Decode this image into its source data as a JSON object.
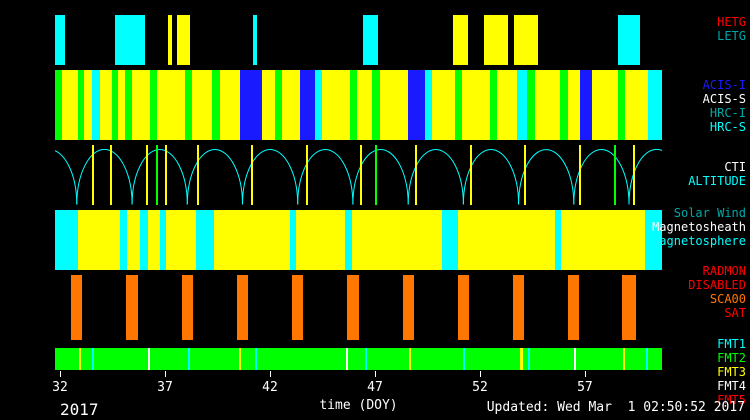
{
  "page": {
    "year_label": "2017",
    "xaxis_title": "time (DOY)",
    "updated_text": "Updated: Wed Mar  1 02:50:52 2017"
  },
  "chart_data": {
    "type": "timeline",
    "xlabel": "time (DOY)",
    "year": "2017",
    "updated": "Updated: Wed Mar  1 02:50:52 2017",
    "x_domain": [
      31.76,
      60.67
    ],
    "x_ticks": [
      32,
      37,
      42,
      47,
      52,
      57
    ],
    "colors": {
      "black": "#000000",
      "white": "#ffffff",
      "red": "#ff0000",
      "yellow": "#ffff00",
      "cyan": "#00ffff",
      "green": "#00ff00",
      "blue": "#1a1aff",
      "orange": "#ff7700",
      "teal": "#00a8a8"
    },
    "bands": [
      {
        "id": "gratings",
        "background": "black",
        "labels": [
          {
            "text": "HETG",
            "color": "red"
          },
          {
            "text": "LETG",
            "color": "teal"
          }
        ],
        "segments": [
          [
            31.76,
            32.24,
            "cyan"
          ],
          [
            34.62,
            36.05,
            "cyan"
          ],
          [
            37.14,
            37.33,
            "yellow"
          ],
          [
            37.57,
            38.19,
            "yellow"
          ],
          [
            41.19,
            41.38,
            "cyan"
          ],
          [
            46.43,
            47.14,
            "cyan"
          ],
          [
            50.71,
            51.43,
            "yellow"
          ],
          [
            52.19,
            53.33,
            "yellow"
          ],
          [
            53.62,
            54.76,
            "yellow"
          ],
          [
            58.57,
            59.62,
            "cyan"
          ]
        ]
      },
      {
        "id": "instruments",
        "background": "yellow",
        "labels": [
          {
            "text": "ACIS-I",
            "color": "blue"
          },
          {
            "text": "ACIS-S",
            "color": "white"
          },
          {
            "text": "HRC-I",
            "color": "teal"
          },
          {
            "text": "HRC-S",
            "color": "cyan"
          }
        ],
        "segments": [
          [
            31.76,
            32.1,
            "green"
          ],
          [
            32.1,
            32.86,
            "yellow"
          ],
          [
            32.86,
            33.14,
            "green"
          ],
          [
            33.14,
            33.52,
            "yellow"
          ],
          [
            33.52,
            33.9,
            "cyan"
          ],
          [
            33.9,
            34.48,
            "yellow"
          ],
          [
            34.48,
            34.76,
            "green"
          ],
          [
            34.76,
            35.1,
            "yellow"
          ],
          [
            35.1,
            35.43,
            "green"
          ],
          [
            35.43,
            36.29,
            "yellow"
          ],
          [
            36.29,
            36.62,
            "green"
          ],
          [
            36.62,
            37.95,
            "yellow"
          ],
          [
            37.95,
            38.29,
            "green"
          ],
          [
            38.29,
            39.24,
            "yellow"
          ],
          [
            39.24,
            39.62,
            "green"
          ],
          [
            39.62,
            40.57,
            "yellow"
          ],
          [
            40.57,
            41.62,
            "blue"
          ],
          [
            41.62,
            42.24,
            "yellow"
          ],
          [
            42.24,
            42.57,
            "green"
          ],
          [
            42.57,
            43.43,
            "yellow"
          ],
          [
            43.43,
            44.14,
            "blue"
          ],
          [
            44.14,
            44.48,
            "cyan"
          ],
          [
            44.48,
            45.81,
            "yellow"
          ],
          [
            45.81,
            46.14,
            "green"
          ],
          [
            46.14,
            46.86,
            "yellow"
          ],
          [
            46.86,
            47.24,
            "green"
          ],
          [
            47.24,
            48.57,
            "yellow"
          ],
          [
            48.57,
            49.38,
            "blue"
          ],
          [
            49.38,
            49.71,
            "cyan"
          ],
          [
            49.71,
            50.81,
            "yellow"
          ],
          [
            50.81,
            51.14,
            "green"
          ],
          [
            51.14,
            52.48,
            "yellow"
          ],
          [
            52.48,
            52.81,
            "green"
          ],
          [
            52.81,
            53.76,
            "yellow"
          ],
          [
            53.76,
            54.24,
            "cyan"
          ],
          [
            54.24,
            54.62,
            "green"
          ],
          [
            54.62,
            55.81,
            "yellow"
          ],
          [
            55.81,
            56.19,
            "green"
          ],
          [
            56.19,
            56.76,
            "yellow"
          ],
          [
            56.76,
            57.33,
            "blue"
          ],
          [
            57.33,
            58.57,
            "yellow"
          ],
          [
            58.57,
            58.9,
            "green"
          ],
          [
            58.9,
            60.0,
            "yellow"
          ],
          [
            60.0,
            60.67,
            "cyan"
          ]
        ]
      },
      {
        "id": "altitude",
        "background": "black",
        "labels": [
          {
            "text": "CTI",
            "color": "white"
          },
          {
            "text": "ALTITUDE",
            "color": "cyan"
          }
        ],
        "arc_color": "cyan",
        "arcs": [
          [
            30.17,
            32.8
          ],
          [
            32.8,
            35.43
          ],
          [
            35.43,
            38.06
          ],
          [
            38.06,
            40.69
          ],
          [
            40.69,
            43.32
          ],
          [
            43.32,
            45.95
          ],
          [
            45.95,
            48.58
          ],
          [
            48.58,
            51.21
          ],
          [
            51.21,
            53.84
          ],
          [
            53.84,
            56.47
          ],
          [
            56.47,
            59.1
          ],
          [
            59.1,
            61.73
          ]
        ],
        "vlines": [
          [
            33.5,
            "yellow"
          ],
          [
            34.4,
            "yellow"
          ],
          [
            36.1,
            "yellow"
          ],
          [
            36.55,
            "green"
          ],
          [
            37.0,
            "yellow"
          ],
          [
            38.5,
            "yellow"
          ],
          [
            41.1,
            "yellow"
          ],
          [
            43.7,
            "yellow"
          ],
          [
            46.3,
            "yellow"
          ],
          [
            47.0,
            "green"
          ],
          [
            48.9,
            "yellow"
          ],
          [
            51.5,
            "yellow"
          ],
          [
            54.1,
            "yellow"
          ],
          [
            56.7,
            "yellow"
          ],
          [
            58.4,
            "green"
          ],
          [
            59.3,
            "yellow"
          ]
        ]
      },
      {
        "id": "regions",
        "background": "yellow",
        "labels": [
          {
            "text": "Solar Wind",
            "color": "teal"
          },
          {
            "text": "Magnetosheath",
            "color": "white"
          },
          {
            "text": "Magnetosphere",
            "color": "cyan"
          }
        ],
        "segments": [
          [
            31.76,
            32.86,
            "cyan"
          ],
          [
            34.86,
            35.19,
            "cyan"
          ],
          [
            35.81,
            36.19,
            "cyan"
          ],
          [
            36.76,
            37.05,
            "cyan"
          ],
          [
            38.48,
            39.33,
            "cyan"
          ],
          [
            42.95,
            43.24,
            "cyan"
          ],
          [
            45.57,
            45.9,
            "cyan"
          ],
          [
            50.19,
            50.95,
            "cyan"
          ],
          [
            55.57,
            55.86,
            "cyan"
          ],
          [
            59.86,
            60.67,
            "cyan"
          ]
        ]
      },
      {
        "id": "radmon",
        "background": "black",
        "labels": [
          {
            "text": "RADMON",
            "color": "red"
          },
          {
            "text": "DISABLED",
            "color": "red"
          },
          {
            "text": "SCA00",
            "color": "orange"
          },
          {
            "text": "SAT",
            "color": "red"
          }
        ],
        "segments": [
          [
            32.53,
            33.07,
            "orange"
          ],
          [
            35.16,
            35.7,
            "orange"
          ],
          [
            37.79,
            38.33,
            "orange"
          ],
          [
            40.42,
            40.96,
            "orange"
          ],
          [
            43.05,
            43.59,
            "orange"
          ],
          [
            45.68,
            46.22,
            "orange"
          ],
          [
            48.31,
            48.85,
            "orange"
          ],
          [
            50.94,
            51.48,
            "orange"
          ],
          [
            53.57,
            54.11,
            "orange"
          ],
          [
            56.2,
            56.74,
            "orange"
          ],
          [
            58.75,
            59.45,
            "orange"
          ]
        ]
      },
      {
        "id": "fmt",
        "background": "green",
        "labels": [
          {
            "text": "FMT1",
            "color": "cyan"
          },
          {
            "text": "FMT2",
            "color": "green"
          },
          {
            "text": "FMT3",
            "color": "yellow"
          },
          {
            "text": "FMT4",
            "color": "white"
          },
          {
            "text": "FMT5",
            "color": "red"
          }
        ],
        "segments": [
          [
            32.9,
            33.0,
            "yellow"
          ],
          [
            33.5,
            33.6,
            "cyan"
          ],
          [
            36.2,
            36.3,
            "white"
          ],
          [
            38.1,
            38.2,
            "cyan"
          ],
          [
            40.5,
            40.6,
            "yellow"
          ],
          [
            41.3,
            41.4,
            "cyan"
          ],
          [
            45.6,
            45.7,
            "white"
          ],
          [
            46.5,
            46.6,
            "cyan"
          ],
          [
            48.6,
            48.7,
            "yellow"
          ],
          [
            51.2,
            51.3,
            "cyan"
          ],
          [
            53.9,
            54.05,
            "yellow"
          ],
          [
            54.3,
            54.4,
            "cyan"
          ],
          [
            56.5,
            56.6,
            "white"
          ],
          [
            58.8,
            58.9,
            "yellow"
          ],
          [
            59.9,
            60.0,
            "cyan"
          ]
        ]
      }
    ]
  }
}
